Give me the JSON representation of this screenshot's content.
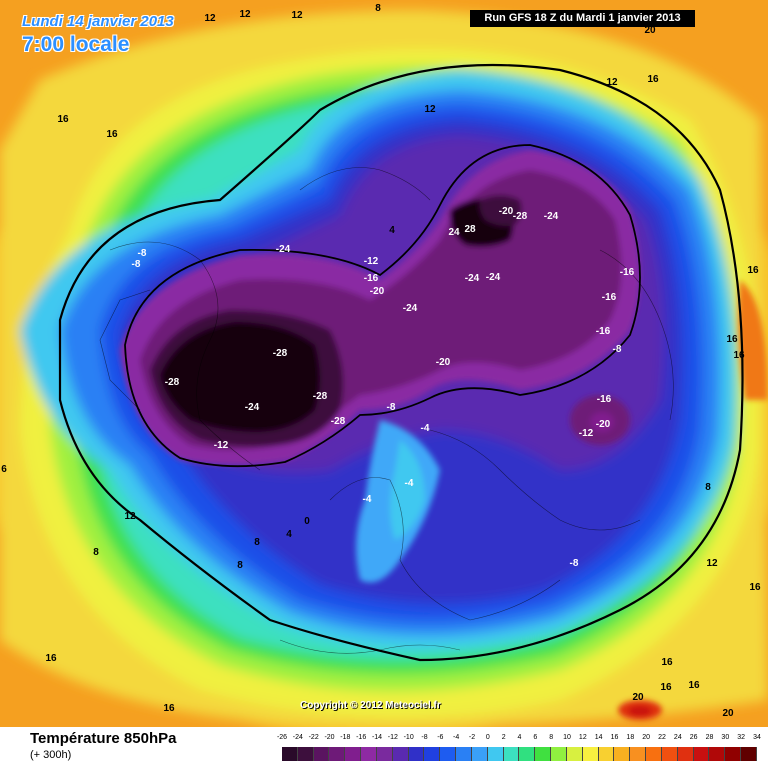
{
  "header": {
    "date_label": "Lundi 14 janvier 2013",
    "time_label": "7:00 locale",
    "run_label": "Run GFS 18 Z du Mardi 1 janvier 2013"
  },
  "footer": {
    "parameter_title": "Température 850hPa",
    "forecast_hour": "(+ 300h)",
    "copyright": "Copyright © 2012 Meteociel.fr"
  },
  "legend": {
    "ticks": [
      "-26",
      "-24",
      "-22",
      "-20",
      "-18",
      "-16",
      "-14",
      "-12",
      "-10",
      "-8",
      "-6",
      "-4",
      "-2",
      "0",
      "2",
      "4",
      "6",
      "8",
      "10",
      "12",
      "14",
      "16",
      "18",
      "20",
      "22",
      "24",
      "26",
      "28",
      "30",
      "32",
      "34"
    ],
    "colors": [
      "#2a0a2a",
      "#3d0f3d",
      "#5a1460",
      "#6e1a78",
      "#801e8e",
      "#8e2aa3",
      "#7a2a9e",
      "#5a2ab0",
      "#3030c8",
      "#2040e0",
      "#1e5cf0",
      "#2a80f4",
      "#3aa0f8",
      "#40c8f0",
      "#3ce0c0",
      "#30e080",
      "#40e040",
      "#90f040",
      "#d8f040",
      "#f8f040",
      "#f8d030",
      "#f8b020",
      "#f89020",
      "#f87010",
      "#f05010",
      "#e03010",
      "#c81010",
      "#b00808",
      "#900000",
      "#600000"
    ]
  },
  "labels": [
    {
      "text": "12"
    },
    {
      "text": "12"
    },
    {
      "text": "12"
    },
    {
      "text": "8"
    },
    {
      "text": "20"
    },
    {
      "text": "16"
    },
    {
      "text": "12"
    },
    {
      "text": "16"
    },
    {
      "text": "16"
    },
    {
      "text": "12"
    },
    {
      "text": "4"
    },
    {
      "text": "-20"
    },
    {
      "text": "-28"
    },
    {
      "text": "-24"
    },
    {
      "text": "28"
    },
    {
      "text": "24"
    },
    {
      "text": "-24"
    },
    {
      "text": "-8"
    },
    {
      "text": "-8"
    },
    {
      "text": "-12"
    },
    {
      "text": "-16"
    },
    {
      "text": "-20"
    },
    {
      "text": "-24"
    },
    {
      "text": "-24"
    },
    {
      "text": "-24"
    },
    {
      "text": "-16"
    },
    {
      "text": "-16"
    },
    {
      "text": "16"
    },
    {
      "text": "-16"
    },
    {
      "text": "-8"
    },
    {
      "text": "16"
    },
    {
      "text": "16"
    },
    {
      "text": "-28"
    },
    {
      "text": "-28"
    },
    {
      "text": "-20"
    },
    {
      "text": "-24"
    },
    {
      "text": "-28"
    },
    {
      "text": "-28"
    },
    {
      "text": "-8"
    },
    {
      "text": "-16"
    },
    {
      "text": "-20"
    },
    {
      "text": "-12"
    },
    {
      "text": "-12"
    },
    {
      "text": "-4"
    },
    {
      "text": "6"
    },
    {
      "text": "-4"
    },
    {
      "text": "-4"
    },
    {
      "text": "8"
    },
    {
      "text": "12"
    },
    {
      "text": "0"
    },
    {
      "text": "4"
    },
    {
      "text": "8"
    },
    {
      "text": "8"
    },
    {
      "text": "8"
    },
    {
      "text": "-8"
    },
    {
      "text": "12"
    },
    {
      "text": "16"
    },
    {
      "text": "16"
    },
    {
      "text": "16"
    },
    {
      "text": "16"
    },
    {
      "text": "20"
    },
    {
      "text": "20"
    },
    {
      "text": "16"
    },
    {
      "text": "16"
    }
  ]
}
